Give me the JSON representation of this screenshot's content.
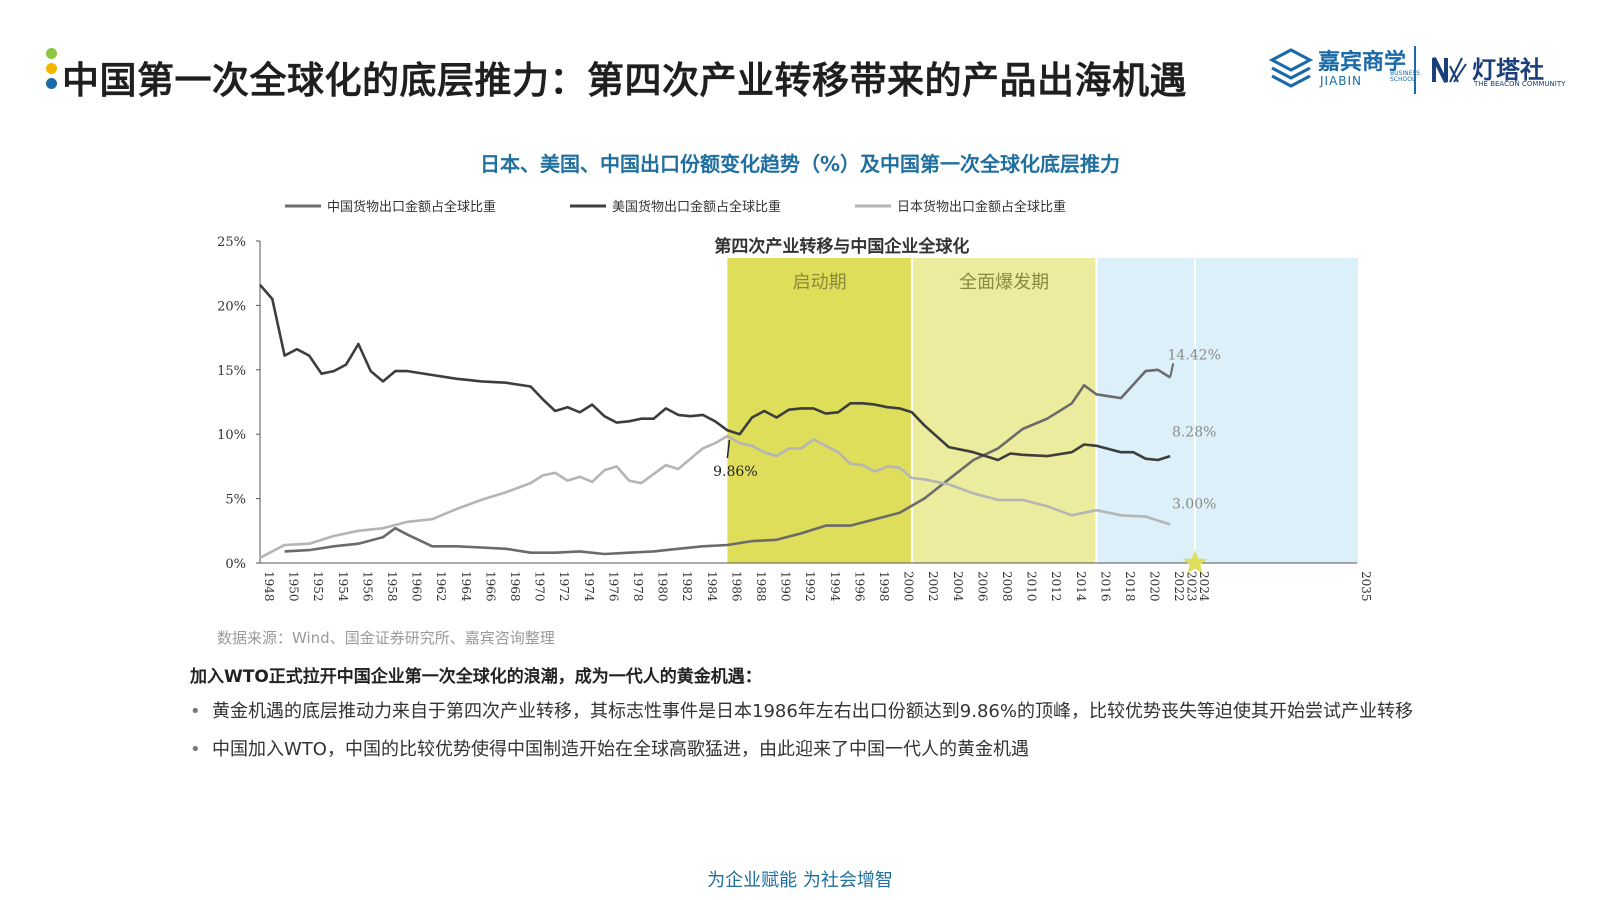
{
  "header": {
    "title": "中国第一次全球化的底层推力：第四次产业转移带来的产品出海机遇",
    "dot_colors": [
      "#8dc63f",
      "#f2b600",
      "#1a6aa8"
    ]
  },
  "logos": {
    "jiabin_cn": "嘉宾商学",
    "jiabin_en": "JIABIN",
    "jiabin_en2": "BUSINESS SCHOOL",
    "beacon_cn": "灯塔社",
    "beacon_en": "THE BEACON COMMUNITY"
  },
  "chart_data": {
    "type": "line",
    "title": "日本、美国、中国出口份额变化趋势（%）及中国第一次全球化底层推力",
    "legend_position": "top",
    "ylim": [
      0,
      25
    ],
    "yticks": [
      0,
      5,
      10,
      15,
      20,
      25
    ],
    "ytick_labels": [
      "0%",
      "5%",
      "10%",
      "15%",
      "20%",
      "25%"
    ],
    "xlim": [
      1948,
      2035
    ],
    "xtick_labels": [
      "1948",
      "1950",
      "1952",
      "1954",
      "1956",
      "1958",
      "1960",
      "1962",
      "1964",
      "1966",
      "1968",
      "1970",
      "1972",
      "1974",
      "1976",
      "1978",
      "1980",
      "1982",
      "1984",
      "1986",
      "1988",
      "1990",
      "1992",
      "1994",
      "1996",
      "1998",
      "2000",
      "2002",
      "2004",
      "2006",
      "2008",
      "2010",
      "2012",
      "2014",
      "2016",
      "2018",
      "2020",
      "2022",
      "2023",
      "2024",
      "2035"
    ],
    "colors": {
      "china": "#6b6b6b",
      "usa": "#3d3d3d",
      "japan": "#b5b5b5",
      "band_startup": "#dede5a",
      "band_burst": "#ecec9e",
      "band_future": "#dcf0f9",
      "star": "#dede5a"
    },
    "series": [
      {
        "name": "中国货物出口金额占全球比重",
        "key": "china",
        "x": [
          1950,
          1952,
          1954,
          1956,
          1958,
          1959,
          1960,
          1962,
          1964,
          1966,
          1968,
          1970,
          1972,
          1974,
          1976,
          1978,
          1980,
          1982,
          1984,
          1986,
          1988,
          1990,
          1992,
          1994,
          1996,
          1998,
          2000,
          2002,
          2004,
          2006,
          2008,
          2010,
          2012,
          2014,
          2015,
          2016,
          2018,
          2020,
          2021,
          2022
        ],
        "values": [
          0.9,
          1.0,
          1.3,
          1.5,
          2.0,
          2.7,
          2.2,
          1.3,
          1.3,
          1.2,
          1.1,
          0.8,
          0.8,
          0.9,
          0.7,
          0.8,
          0.9,
          1.1,
          1.3,
          1.4,
          1.7,
          1.8,
          2.3,
          2.9,
          2.9,
          3.4,
          3.9,
          5.0,
          6.5,
          8.0,
          8.9,
          10.4,
          11.2,
          12.4,
          13.8,
          13.1,
          12.8,
          14.9,
          15.0,
          14.4
        ]
      },
      {
        "name": "美国货物出口金额占全球比重",
        "key": "usa",
        "x": [
          1948,
          1949,
          1950,
          1951,
          1952,
          1953,
          1954,
          1955,
          1956,
          1957,
          1958,
          1959,
          1960,
          1962,
          1964,
          1965,
          1966,
          1968,
          1970,
          1971,
          1972,
          1973,
          1974,
          1975,
          1976,
          1977,
          1978,
          1979,
          1980,
          1981,
          1982,
          1983,
          1984,
          1985,
          1986,
          1987,
          1988,
          1989,
          1990,
          1991,
          1992,
          1993,
          1994,
          1995,
          1996,
          1997,
          1998,
          1999,
          2000,
          2001,
          2002,
          2004,
          2006,
          2008,
          2009,
          2010,
          2012,
          2014,
          2015,
          2016,
          2018,
          2019,
          2020,
          2021,
          2022
        ],
        "values": [
          21.6,
          20.5,
          16.1,
          16.6,
          16.1,
          14.7,
          14.9,
          15.4,
          17.0,
          14.9,
          14.1,
          14.9,
          14.9,
          14.6,
          14.3,
          14.2,
          14.1,
          14.0,
          13.7,
          12.7,
          11.8,
          12.1,
          11.7,
          12.3,
          11.4,
          10.9,
          11.0,
          11.2,
          11.2,
          12.0,
          11.5,
          11.4,
          11.5,
          11.0,
          10.3,
          10.0,
          11.3,
          11.8,
          11.3,
          11.9,
          12.0,
          12.0,
          11.6,
          11.7,
          12.4,
          12.4,
          12.3,
          12.1,
          12.0,
          11.7,
          10.7,
          9.0,
          8.6,
          8.0,
          8.5,
          8.4,
          8.3,
          8.6,
          9.2,
          9.1,
          8.6,
          8.6,
          8.1,
          8.0,
          8.3
        ]
      },
      {
        "name": "日本货物出口金额占全球比重",
        "key": "japan",
        "x": [
          1948,
          1950,
          1952,
          1954,
          1956,
          1958,
          1960,
          1962,
          1964,
          1966,
          1968,
          1970,
          1971,
          1972,
          1973,
          1974,
          1975,
          1976,
          1977,
          1978,
          1979,
          1980,
          1981,
          1982,
          1983,
          1984,
          1985,
          1986,
          1987,
          1988,
          1989,
          1990,
          1991,
          1992,
          1993,
          1994,
          1995,
          1996,
          1997,
          1998,
          1999,
          2000,
          2001,
          2002,
          2004,
          2006,
          2008,
          2010,
          2012,
          2014,
          2016,
          2018,
          2020,
          2022
        ],
        "values": [
          0.4,
          1.4,
          1.5,
          2.1,
          2.5,
          2.7,
          3.2,
          3.4,
          4.2,
          4.9,
          5.5,
          6.2,
          6.8,
          7.0,
          6.4,
          6.7,
          6.3,
          7.2,
          7.5,
          6.4,
          6.2,
          6.9,
          7.6,
          7.3,
          8.1,
          8.9,
          9.3,
          9.86,
          9.3,
          9.1,
          8.6,
          8.3,
          8.9,
          8.9,
          9.6,
          9.1,
          8.6,
          7.7,
          7.6,
          7.1,
          7.5,
          7.4,
          6.6,
          6.5,
          6.1,
          5.4,
          4.9,
          4.9,
          4.4,
          3.7,
          4.1,
          3.7,
          3.6,
          3.0
        ]
      }
    ],
    "periods": {
      "group_label": "第四次产业转移与中国企业全球化",
      "startup": {
        "label": "启动期",
        "from": 1986,
        "to": 2001
      },
      "burst": {
        "label": "全面爆发期",
        "from": 2001,
        "to": 2016
      },
      "future": {
        "from": 2016,
        "to": 2035
      },
      "divider_year": 2024
    },
    "annotations": [
      {
        "text": "9.86%",
        "x": 1986,
        "y": 9.86
      },
      {
        "text": "14.42%",
        "x": 2022,
        "y": 14.42
      },
      {
        "text": "8.28%",
        "x": 2022,
        "y": 8.28
      },
      {
        "text": "3.00%",
        "x": 2022,
        "y": 3.0
      }
    ],
    "star_year": 2024
  },
  "source": "数据来源：Wind、国金证券研究所、嘉宾咨询整理",
  "body": {
    "lead": "加入WTO正式拉开中国企业第一次全球化的浪潮，成为一代人的黄金机遇：",
    "bullets": [
      "黄金机遇的底层推动力来自于第四次产业转移，其标志性事件是日本1986年左右出口份额达到9.86%的顶峰，比较优势丧失等迫使其开始尝试产业转移",
      "中国加入WTO，中国的比较优势使得中国制造开始在全球高歌猛进，由此迎来了中国一代人的黄金机遇"
    ],
    "bullet_symbol": "•"
  },
  "footer": "为企业赋能  为社会增智"
}
